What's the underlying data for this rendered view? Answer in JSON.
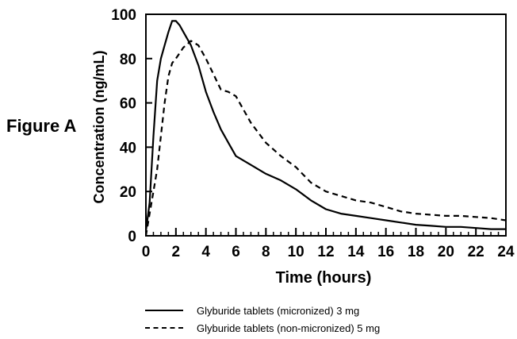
{
  "figure_label": "Figure A",
  "chart_data": {
    "type": "line",
    "xlabel": "Time (hours)",
    "ylabel": "Concentration (ng/mL)",
    "xlim": [
      0,
      24
    ],
    "ylim": [
      0,
      100
    ],
    "xticks": [
      0,
      2,
      4,
      6,
      8,
      10,
      12,
      14,
      16,
      18,
      20,
      22,
      24
    ],
    "yticks": [
      0,
      20,
      40,
      60,
      80,
      100
    ],
    "grid": false,
    "legend_position": "bottom",
    "series": [
      {
        "name": "Glyburide tablets (micronized) 3 mg",
        "style": "solid",
        "color": "#000000",
        "x": [
          0,
          0.25,
          0.5,
          0.75,
          1,
          1.25,
          1.5,
          1.75,
          2,
          2.25,
          2.5,
          3,
          3.5,
          4,
          4.5,
          5,
          5.5,
          6,
          7,
          8,
          9,
          10,
          11,
          12,
          13,
          14,
          15,
          16,
          17,
          18,
          19,
          20,
          21,
          22,
          23,
          24
        ],
        "y": [
          2,
          15,
          45,
          70,
          80,
          86,
          92,
          97,
          97,
          95,
          92,
          86,
          77,
          65,
          56,
          48,
          42,
          36,
          32,
          28,
          25,
          21,
          16,
          12,
          10,
          9,
          8,
          7,
          6,
          5,
          4.5,
          4,
          4,
          3.5,
          3,
          3
        ]
      },
      {
        "name": "Glyburide tablets (non-micronized) 5 mg",
        "style": "dashed",
        "color": "#000000",
        "x": [
          0,
          0.25,
          0.5,
          0.75,
          1,
          1.25,
          1.5,
          1.75,
          2,
          2.5,
          3,
          3.5,
          4,
          4.5,
          5,
          5.5,
          6,
          6.5,
          7,
          8,
          9,
          10,
          11,
          12,
          13,
          14,
          15,
          16,
          17,
          18,
          19,
          20,
          21,
          22,
          23,
          24
        ],
        "y": [
          0,
          10,
          20,
          30,
          45,
          60,
          72,
          78,
          80,
          85,
          88,
          86,
          80,
          73,
          66,
          65,
          63,
          57,
          51,
          42,
          36,
          31,
          24,
          20,
          18,
          16,
          15,
          13,
          11,
          10,
          9.5,
          9,
          9,
          8.5,
          8,
          7
        ]
      }
    ]
  },
  "legend": {
    "items": [
      {
        "label": "Glyburide tablets (micronized) 3 mg",
        "style": "solid"
      },
      {
        "label": "Glyburide tablets (non-micronized) 5 mg",
        "style": "dashed"
      }
    ]
  }
}
